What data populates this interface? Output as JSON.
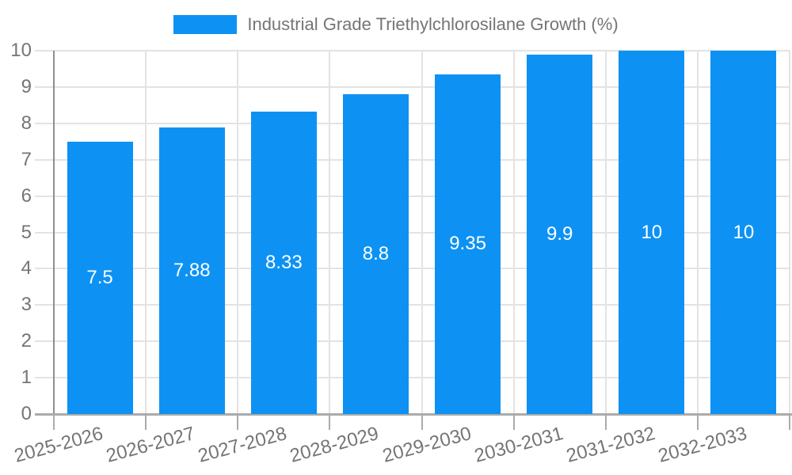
{
  "chart_data": {
    "type": "bar",
    "title": "Industrial Grade Triethylchlorosilane Growth (%)",
    "categories": [
      "2025-2026",
      "2026-2027",
      "2027-2028",
      "2028-2029",
      "2029-2030",
      "2030-2031",
      "2031-2032",
      "2032-2033"
    ],
    "values": [
      7.5,
      7.88,
      8.33,
      8.8,
      9.35,
      9.9,
      10,
      10
    ],
    "value_labels": [
      "7.5",
      "7.88",
      "8.33",
      "8.8",
      "9.35",
      "9.9",
      "10",
      "10"
    ],
    "xlabel": "",
    "ylabel": "",
    "ylim": [
      0,
      10
    ],
    "y_ticks": [
      0,
      1,
      2,
      3,
      4,
      5,
      6,
      7,
      8,
      9,
      10
    ],
    "grid": "on",
    "legend_position": "top-center",
    "series_color": "#0d92f4"
  },
  "colors": {
    "bar": "#0d92f4",
    "grid": "#e3e3e3",
    "axis": "#8f8f8f",
    "axis_light": "#ababab",
    "text": "#757575",
    "value_text": "#ffffff",
    "background": "#ffffff"
  }
}
